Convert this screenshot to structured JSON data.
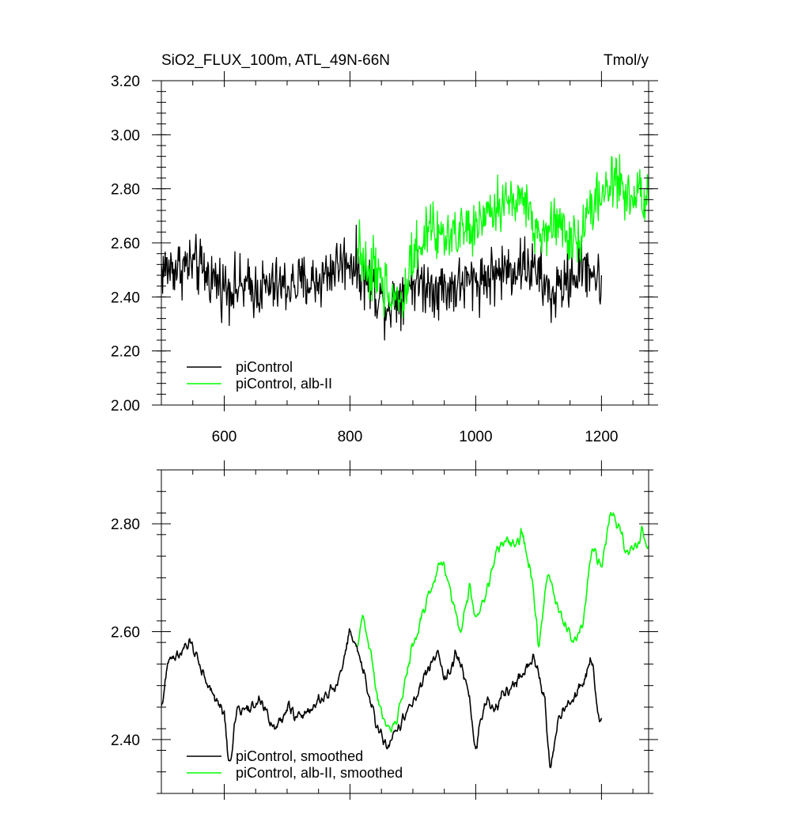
{
  "chart_data": [
    {
      "type": "line",
      "title": "SiO2_FLUX_100m, ATL_49N-66N",
      "units": "Tmol/y",
      "xlabel": "",
      "ylabel": "",
      "xlim": [
        500,
        1275
      ],
      "ylim": [
        2.0,
        3.2
      ],
      "x_ticks": [
        600,
        800,
        1000,
        1200
      ],
      "x_tick_labels": [
        "600",
        "800",
        "1000",
        "1200"
      ],
      "y_ticks": [
        2.0,
        2.2,
        2.4,
        2.6,
        2.8,
        3.0,
        3.2
      ],
      "y_tick_labels": [
        "2.00",
        "2.20",
        "2.40",
        "2.60",
        "2.80",
        "3.00",
        "3.20"
      ],
      "legend_position": "bottom-left",
      "grid": false,
      "series": [
        {
          "name": "piControl",
          "color": "#000000",
          "x_range": [
            500,
            1200
          ],
          "keypoints": [
            [
              500,
              2.5
            ],
            [
              550,
              2.52
            ],
            [
              600,
              2.44
            ],
            [
              650,
              2.43
            ],
            [
              700,
              2.44
            ],
            [
              750,
              2.46
            ],
            [
              780,
              2.52
            ],
            [
              800,
              2.54
            ],
            [
              840,
              2.42
            ],
            [
              860,
              2.37
            ],
            [
              900,
              2.46
            ],
            [
              950,
              2.43
            ],
            [
              1000,
              2.46
            ],
            [
              1050,
              2.5
            ],
            [
              1080,
              2.52
            ],
            [
              1100,
              2.48
            ],
            [
              1120,
              2.4
            ],
            [
              1150,
              2.47
            ],
            [
              1180,
              2.52
            ],
            [
              1200,
              2.43
            ]
          ]
        },
        {
          "name": "piControl, alb-II",
          "color": "#00ff00",
          "x_range": [
            812,
            1275
          ],
          "keypoints": [
            [
              812,
              2.56
            ],
            [
              840,
              2.48
            ],
            [
              860,
              2.42
            ],
            [
              880,
              2.4
            ],
            [
              900,
              2.55
            ],
            [
              930,
              2.66
            ],
            [
              960,
              2.62
            ],
            [
              1000,
              2.65
            ],
            [
              1030,
              2.73
            ],
            [
              1060,
              2.76
            ],
            [
              1080,
              2.75
            ],
            [
              1100,
              2.62
            ],
            [
              1130,
              2.68
            ],
            [
              1160,
              2.6
            ],
            [
              1190,
              2.75
            ],
            [
              1220,
              2.83
            ],
            [
              1250,
              2.77
            ],
            [
              1275,
              2.75
            ]
          ]
        }
      ]
    },
    {
      "type": "line",
      "title": "",
      "xlabel": "",
      "ylabel": "",
      "xlim": [
        500,
        1275
      ],
      "ylim": [
        2.3,
        2.9
      ],
      "x_ticks": [
        600,
        800,
        1000,
        1200
      ],
      "y_ticks": [
        2.4,
        2.6,
        2.8
      ],
      "y_tick_labels": [
        "2.40",
        "2.60",
        "2.80"
      ],
      "legend_position": "bottom-left",
      "grid": false,
      "series": [
        {
          "name": "piControl, smoothed",
          "color": "#000000",
          "x_range": [
            500,
            1200
          ],
          "keypoints": [
            [
              500,
              2.46
            ],
            [
              512,
              2.55
            ],
            [
              530,
              2.56
            ],
            [
              548,
              2.58
            ],
            [
              565,
              2.53
            ],
            [
              580,
              2.49
            ],
            [
              600,
              2.45
            ],
            [
              608,
              2.35
            ],
            [
              620,
              2.45
            ],
            [
              640,
              2.46
            ],
            [
              660,
              2.47
            ],
            [
              680,
              2.42
            ],
            [
              700,
              2.46
            ],
            [
              720,
              2.44
            ],
            [
              740,
              2.46
            ],
            [
              760,
              2.48
            ],
            [
              780,
              2.5
            ],
            [
              800,
              2.6
            ],
            [
              815,
              2.55
            ],
            [
              830,
              2.48
            ],
            [
              845,
              2.42
            ],
            [
              860,
              2.38
            ],
            [
              880,
              2.43
            ],
            [
              900,
              2.47
            ],
            [
              920,
              2.52
            ],
            [
              940,
              2.57
            ],
            [
              950,
              2.51
            ],
            [
              970,
              2.56
            ],
            [
              990,
              2.48
            ],
            [
              1000,
              2.38
            ],
            [
              1015,
              2.47
            ],
            [
              1030,
              2.46
            ],
            [
              1050,
              2.49
            ],
            [
              1070,
              2.52
            ],
            [
              1090,
              2.55
            ],
            [
              1100,
              2.52
            ],
            [
              1110,
              2.48
            ],
            [
              1118,
              2.34
            ],
            [
              1130,
              2.43
            ],
            [
              1150,
              2.47
            ],
            [
              1170,
              2.5
            ],
            [
              1185,
              2.55
            ],
            [
              1195,
              2.44
            ],
            [
              1200,
              2.43
            ]
          ]
        },
        {
          "name": "piControl, alb-II, smoothed",
          "color": "#00ff00",
          "x_range": [
            812,
            1275
          ],
          "keypoints": [
            [
              812,
              2.57
            ],
            [
              820,
              2.63
            ],
            [
              830,
              2.58
            ],
            [
              845,
              2.47
            ],
            [
              860,
              2.43
            ],
            [
              870,
              2.42
            ],
            [
              880,
              2.46
            ],
            [
              900,
              2.58
            ],
            [
              915,
              2.63
            ],
            [
              930,
              2.68
            ],
            [
              945,
              2.74
            ],
            [
              960,
              2.67
            ],
            [
              975,
              2.6
            ],
            [
              990,
              2.68
            ],
            [
              1000,
              2.63
            ],
            [
              1015,
              2.66
            ],
            [
              1030,
              2.74
            ],
            [
              1045,
              2.77
            ],
            [
              1060,
              2.76
            ],
            [
              1075,
              2.78
            ],
            [
              1090,
              2.7
            ],
            [
              1100,
              2.57
            ],
            [
              1115,
              2.72
            ],
            [
              1130,
              2.64
            ],
            [
              1150,
              2.6
            ],
            [
              1160,
              2.58
            ],
            [
              1170,
              2.62
            ],
            [
              1185,
              2.75
            ],
            [
              1200,
              2.72
            ],
            [
              1215,
              2.82
            ],
            [
              1225,
              2.8
            ],
            [
              1240,
              2.75
            ],
            [
              1255,
              2.76
            ],
            [
              1265,
              2.79
            ],
            [
              1275,
              2.74
            ]
          ]
        }
      ]
    }
  ]
}
